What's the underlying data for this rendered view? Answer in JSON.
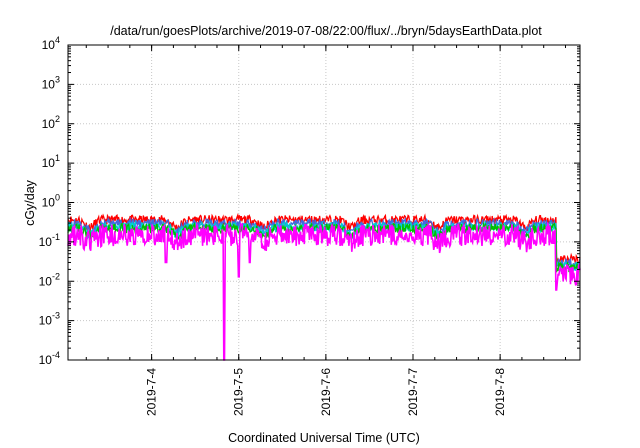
{
  "chart_data": {
    "type": "line",
    "title": "/data/run/goesPlots/archive/2019-07-08/22:00/flux/../bryn/5daysEarthData.plot",
    "xlabel": "Coordinated Universal Time (UTC)",
    "ylabel": "cGy/day",
    "yscale": "log",
    "ylim": [
      0.0001,
      10000
    ],
    "yticks": [
      {
        "base": "10",
        "exp": "-4",
        "value": 0.0001
      },
      {
        "base": "10",
        "exp": "-3",
        "value": 0.001
      },
      {
        "base": "10",
        "exp": "-2",
        "value": 0.01
      },
      {
        "base": "10",
        "exp": "-1",
        "value": 0.1
      },
      {
        "base": "10",
        "exp": "0",
        "value": 1
      },
      {
        "base": "10",
        "exp": "1",
        "value": 10
      },
      {
        "base": "10",
        "exp": "2",
        "value": 100
      },
      {
        "base": "10",
        "exp": "3",
        "value": 1000
      },
      {
        "base": "10",
        "exp": "4",
        "value": 10000
      }
    ],
    "xlim": [
      "2019-07-03 00:58",
      "2019-07-08 22:00"
    ],
    "xticks": [
      {
        "label": "2019-7-4",
        "date": "2019-07-04"
      },
      {
        "label": "2019-7-5",
        "date": "2019-07-05"
      },
      {
        "label": "2019-7-6",
        "date": "2019-07-06"
      },
      {
        "label": "2019-7-7",
        "date": "2019-07-07"
      },
      {
        "label": "2019-7-8",
        "date": "2019-07-08"
      }
    ],
    "grid": true,
    "legend": "none",
    "series": [
      {
        "color": "#ff0000",
        "level": 0.36
      },
      {
        "color": "#4169e1",
        "level": 0.29
      },
      {
        "color": "#00ced1",
        "level": 0.24
      },
      {
        "color": "#00c000",
        "level": 0.22
      },
      {
        "color": "#ff00ff",
        "level": 0.15
      }
    ],
    "features": [
      {
        "date": "2019-07-03 01:00",
        "value": 0.25
      },
      {
        "date": "2019-07-03 12:00",
        "value": 0.2
      },
      {
        "date": "2019-07-04 04:00",
        "value": 0.03
      },
      {
        "date": "2019-07-04 20:00",
        "value": 0.0001
      },
      {
        "date": "2019-07-05 00:00",
        "value": 0.013
      },
      {
        "date": "2019-07-05 03:00",
        "value": 0.03
      },
      {
        "date": "2019-07-08 14:00",
        "value": 0.35
      },
      {
        "date": "2019-07-08 15:30",
        "value": 0.006
      }
    ]
  }
}
